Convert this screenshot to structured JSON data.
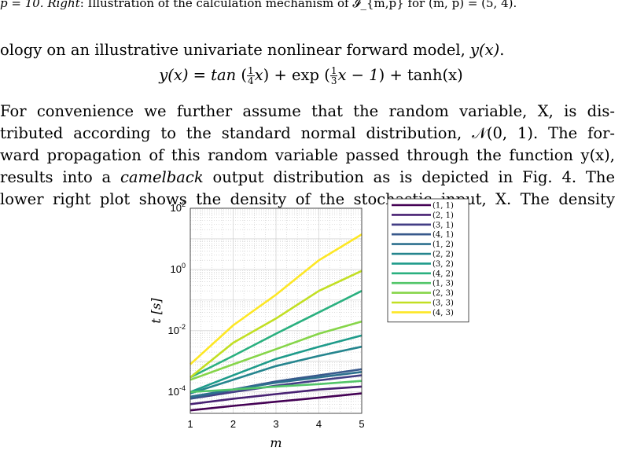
{
  "caption_fragment": {
    "p_eq": "p = 10.",
    "right_label": "Right",
    "rest": ": Illustration of the calculation mechanism of 𝓘_{m,p} for (m, p) = (5, 4)."
  },
  "paragraph1": {
    "before": "ology on an illustrative univariate nonlinear forward model, ",
    "fn": "y(x)",
    "after": "."
  },
  "equation": {
    "lhs": "y(x) = tan",
    "mid": "+ exp",
    "end": "+ tanh(x)",
    "f1_num": "1",
    "f1_den": "4",
    "f2_num": "1",
    "f2_den": "3",
    "x1": "x",
    "x2": "x − 1"
  },
  "paragraph2": {
    "l1": "For convenience we further assume that the random variable, X, is dis-",
    "l2": "tributed according to the standard normal distribution, 𝒩(0, 1). The for-",
    "l3": "ward propagation of this random variable passed through the function y(x),",
    "l4a": "results into a ",
    "l4b": "camelback",
    "l4c": " output distribution as is depicted in Fig. 4. The",
    "l5": "lower right plot shows the density of the stochastic input, X. The density"
  },
  "chart_data": {
    "type": "line",
    "xlabel": "m",
    "ylabel": "t [s]",
    "x": [
      1,
      2,
      3,
      4,
      5
    ],
    "x_ticks": [
      "1",
      "2",
      "3",
      "4",
      "5"
    ],
    "y_ticks": [
      "10^-4",
      "10^-2",
      "10^0",
      "10^2"
    ],
    "y_scale": "log",
    "ylim": [
      2e-05,
      100
    ],
    "xlim": [
      1,
      5
    ],
    "grid": true,
    "legend_position": "right",
    "series": [
      {
        "name": "(1, 1)",
        "color": "#440154",
        "values": [
          2.5e-05,
          3.5e-05,
          4.8e-05,
          6.5e-05,
          9e-05
        ]
      },
      {
        "name": "(2, 1)",
        "color": "#482173",
        "values": [
          4e-05,
          6e-05,
          8.5e-05,
          0.00012,
          0.00015
        ]
      },
      {
        "name": "(3, 1)",
        "color": "#433e85",
        "values": [
          6e-05,
          0.0001,
          0.00016,
          0.00024,
          0.00035
        ]
      },
      {
        "name": "(4, 1)",
        "color": "#38598c",
        "values": [
          6e-05,
          0.00012,
          0.00022,
          0.00035,
          0.00055
        ]
      },
      {
        "name": "(1, 2)",
        "color": "#2d708e",
        "values": [
          7e-05,
          0.00012,
          0.0002,
          0.0003,
          0.00045
        ]
      },
      {
        "name": "(2, 2)",
        "color": "#25858e",
        "values": [
          9e-05,
          0.00025,
          0.0007,
          0.0015,
          0.003
        ]
      },
      {
        "name": "(3, 2)",
        "color": "#1e9b8a",
        "values": [
          0.0001,
          0.00035,
          0.0012,
          0.003,
          0.007
        ]
      },
      {
        "name": "(4, 2)",
        "color": "#2ab07f",
        "values": [
          0.0003,
          0.0015,
          0.008,
          0.04,
          0.2
        ]
      },
      {
        "name": "(1, 3)",
        "color": "#52c569",
        "values": [
          0.0001,
          0.00012,
          0.00015,
          0.00018,
          0.00023
        ]
      },
      {
        "name": "(2, 3)",
        "color": "#86d549",
        "values": [
          0.00025,
          0.0008,
          0.0025,
          0.008,
          0.02
        ]
      },
      {
        "name": "(3, 3)",
        "color": "#c2df23",
        "values": [
          0.0003,
          0.004,
          0.025,
          0.2,
          0.9
        ]
      },
      {
        "name": "(4, 3)",
        "color": "#fde725",
        "values": [
          0.0008,
          0.015,
          0.15,
          2,
          14
        ]
      }
    ]
  }
}
